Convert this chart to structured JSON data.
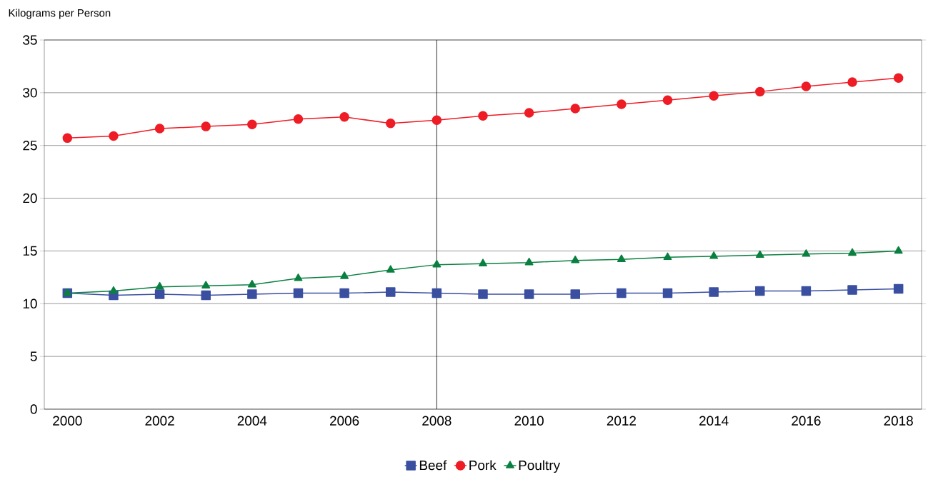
{
  "chart_data": {
    "type": "line",
    "ylabel": "Kilograms per Person",
    "categories": [
      "2000",
      null,
      "2002",
      null,
      "2004",
      null,
      "2006",
      null,
      "2008",
      null,
      "2010",
      null,
      "2012",
      null,
      "2014",
      null,
      "2016",
      null,
      "2018"
    ],
    "series": [
      {
        "name": "Beef",
        "color": "#3a4fa0",
        "marker": "square",
        "values": [
          11.0,
          10.8,
          10.9,
          10.8,
          10.9,
          11.0,
          11.0,
          11.1,
          11.0,
          10.9,
          10.9,
          10.9,
          11.0,
          11.0,
          11.1,
          11.2,
          11.2,
          11.3,
          11.4
        ]
      },
      {
        "name": "Pork",
        "color": "#ee1c25",
        "marker": "circle",
        "values": [
          25.7,
          25.9,
          26.6,
          26.8,
          27.0,
          27.5,
          27.7,
          27.1,
          27.4,
          27.8,
          28.1,
          28.5,
          28.9,
          29.3,
          29.7,
          30.1,
          30.6,
          31.0,
          31.4
        ]
      },
      {
        "name": "Poultry",
        "color": "#0a8040",
        "marker": "triangle",
        "values": [
          11.0,
          11.2,
          11.6,
          11.7,
          11.8,
          12.4,
          12.6,
          13.2,
          13.7,
          13.8,
          13.9,
          14.1,
          14.2,
          14.4,
          14.5,
          14.6,
          14.7,
          14.8,
          15.0
        ]
      }
    ],
    "ylim": [
      0,
      35
    ],
    "yticks": [
      0,
      5,
      10,
      15,
      20,
      25,
      30,
      35
    ],
    "grid": "y",
    "legend": "bottom",
    "line_style": "solid",
    "ref_lines": [
      {
        "axis": "x",
        "value": "2008",
        "color": "#000000"
      }
    ]
  }
}
